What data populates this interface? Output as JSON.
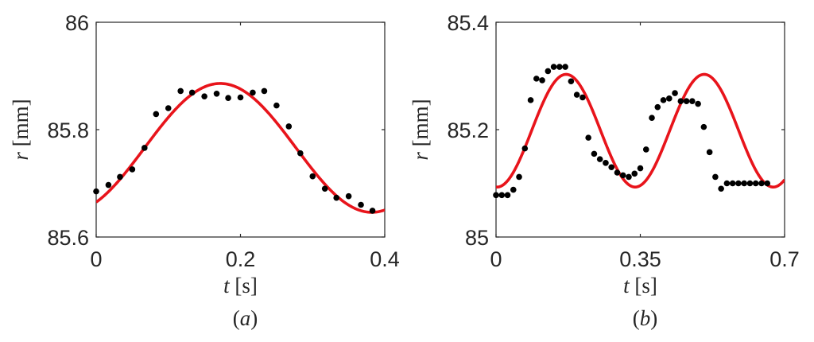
{
  "chart_data": [
    {
      "type": "scatter",
      "panel_label": "(a)",
      "xlabel_var": "t",
      "xlabel_unit": "[s]",
      "ylabel_var": "r",
      "ylabel_unit": "[mm]",
      "xlim": [
        0,
        0.4
      ],
      "ylim": [
        85.6,
        86
      ],
      "xticks": [
        0,
        0.2,
        0.4
      ],
      "xtick_labels": [
        "0",
        "0.2",
        "0.4"
      ],
      "yticks": [
        85.6,
        85.8,
        86
      ],
      "ytick_labels": [
        "85.6",
        "85.8",
        "86"
      ],
      "grid": false,
      "series": [
        {
          "kind": "points",
          "color": "#000000",
          "x": [
            0.0,
            0.017,
            0.033,
            0.05,
            0.067,
            0.083,
            0.1,
            0.117,
            0.133,
            0.15,
            0.167,
            0.183,
            0.2,
            0.217,
            0.233,
            0.25,
            0.267,
            0.283,
            0.3,
            0.317,
            0.333,
            0.35,
            0.367,
            0.383
          ],
          "y": [
            85.685,
            85.697,
            85.712,
            85.726,
            85.766,
            85.829,
            85.84,
            85.872,
            85.869,
            85.862,
            85.867,
            85.859,
            85.86,
            85.869,
            85.872,
            85.845,
            85.806,
            85.756,
            85.713,
            85.69,
            85.673,
            85.676,
            85.66,
            85.649
          ]
        },
        {
          "kind": "line",
          "color": "#e8141b",
          "model": "sine",
          "mean": 85.766,
          "amplitude": 0.12,
          "period": 0.42,
          "peak_x": 0.172,
          "x_range": [
            0,
            0.4
          ]
        }
      ]
    },
    {
      "type": "scatter",
      "panel_label": "(b)",
      "xlabel_var": "t",
      "xlabel_unit": "[s]",
      "ylabel_var": "r",
      "ylabel_unit": "[mm]",
      "xlim": [
        0,
        0.7
      ],
      "ylim": [
        85,
        85.4
      ],
      "xticks": [
        0,
        0.35,
        0.7
      ],
      "xtick_labels": [
        "0",
        "0.35",
        "0.7"
      ],
      "yticks": [
        85,
        85.2,
        85.4
      ],
      "ytick_labels": [
        "85",
        "85.2",
        "85.4"
      ],
      "grid": false,
      "series": [
        {
          "kind": "points",
          "color": "#000000",
          "x": [
            0.0,
            0.014,
            0.028,
            0.042,
            0.056,
            0.07,
            0.084,
            0.098,
            0.112,
            0.126,
            0.14,
            0.154,
            0.168,
            0.182,
            0.196,
            0.21,
            0.224,
            0.238,
            0.252,
            0.266,
            0.28,
            0.294,
            0.308,
            0.322,
            0.336,
            0.35,
            0.364,
            0.378,
            0.392,
            0.406,
            0.42,
            0.434,
            0.448,
            0.462,
            0.476,
            0.49,
            0.504,
            0.518,
            0.532,
            0.546,
            0.56,
            0.574,
            0.588,
            0.602,
            0.616,
            0.63,
            0.644,
            0.658
          ],
          "y": [
            85.078,
            85.078,
            85.078,
            85.088,
            85.112,
            85.165,
            85.255,
            85.295,
            85.292,
            85.309,
            85.317,
            85.317,
            85.317,
            85.29,
            85.265,
            85.26,
            85.185,
            85.155,
            85.145,
            85.138,
            85.13,
            85.12,
            85.115,
            85.112,
            85.118,
            85.128,
            85.163,
            85.222,
            85.242,
            85.255,
            85.258,
            85.268,
            85.253,
            85.253,
            85.253,
            85.248,
            85.205,
            85.158,
            85.112,
            85.09,
            85.1,
            85.1,
            85.1,
            85.1,
            85.1,
            85.1,
            85.1,
            85.1
          ]
        },
        {
          "kind": "line",
          "color": "#e8141b",
          "model": "sine",
          "mean": 85.198,
          "amplitude": 0.105,
          "period": 0.335,
          "peak_x": 0.17,
          "x_range": [
            0,
            0.7
          ]
        }
      ]
    }
  ]
}
